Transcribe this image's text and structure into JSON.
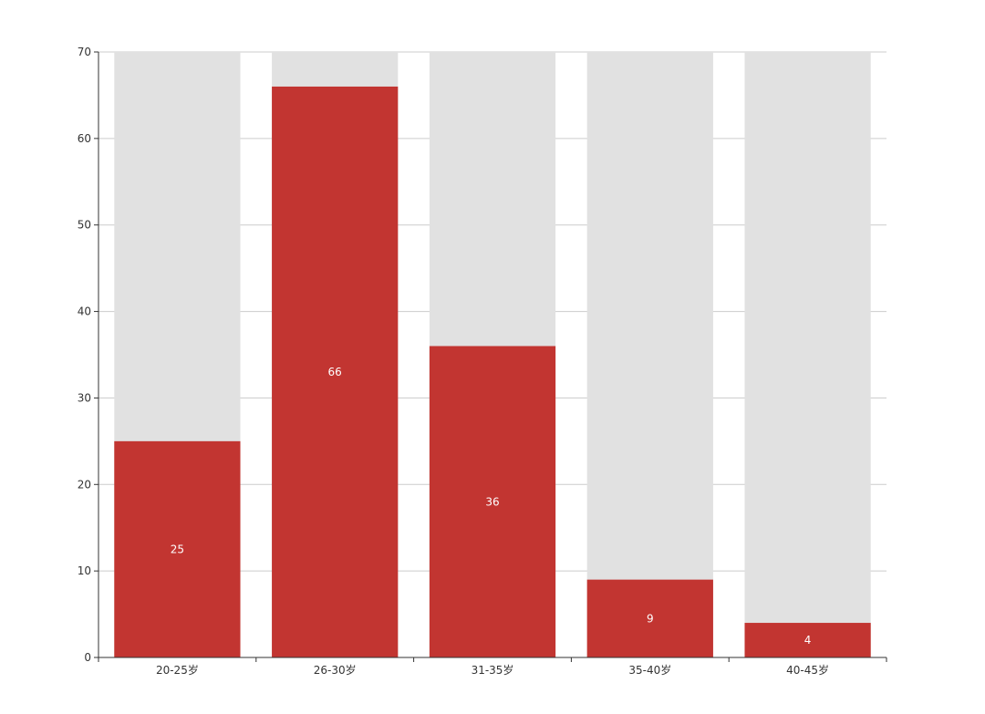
{
  "chart_data": {
    "type": "bar",
    "title": "",
    "xlabel": "",
    "ylabel": "",
    "categories": [
      "20-25岁",
      "26-30岁",
      "31-35岁",
      "35-40岁",
      "40-45岁"
    ],
    "values": [
      25,
      66,
      36,
      9,
      4
    ],
    "ylim": [
      0,
      70
    ],
    "yticks": [
      0,
      10,
      20,
      30,
      40,
      50,
      60,
      70
    ],
    "grid": true,
    "background_bar": true,
    "data_labels": "inside-center",
    "colors": {
      "bar": "#c23531",
      "bar_background": "#e1e1e1",
      "gridline": "#cccccc",
      "axis": "#333333",
      "tick_label": "#333333",
      "data_label": "#ffffff"
    }
  }
}
